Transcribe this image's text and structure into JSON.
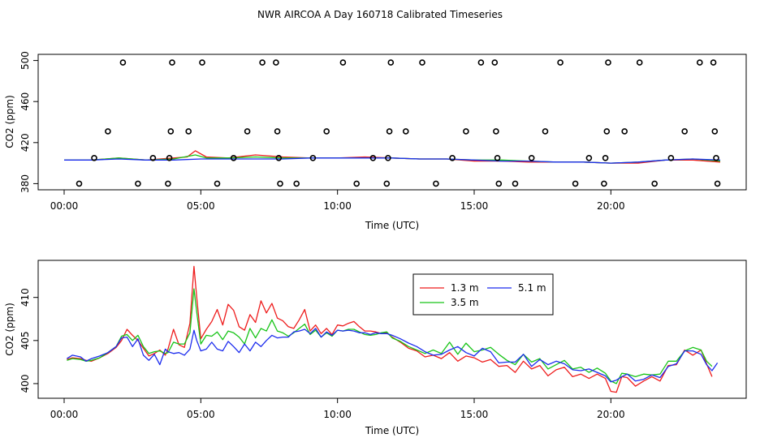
{
  "title": "NWR AIRCOA A  Day 160718  Calibrated Timeseries",
  "colors": {
    "s1": "#ee1c1c",
    "s2": "#18c418",
    "s3": "#1c2cee",
    "points": "#000000"
  },
  "chart_data": [
    {
      "type": "scatter",
      "xlabel": "Time (UTC)",
      "ylabel": "CO2 (ppm)",
      "xlim": [
        -0.95,
        24.95
      ],
      "ylim": [
        374,
        506
      ],
      "x_ticks": [
        0,
        5,
        10,
        15,
        20
      ],
      "x_tick_labels": [
        "00:00",
        "05:00",
        "10:00",
        "15:00",
        "20:00"
      ],
      "y_ticks": [
        380,
        420,
        460,
        500
      ],
      "y_tick_labels": [
        "380",
        "420",
        "460",
        "500"
      ],
      "calibration_points": [
        [
          0.55,
          380
        ],
        [
          1.1,
          405
        ],
        [
          1.6,
          431
        ],
        [
          2.15,
          498
        ],
        [
          2.7,
          380
        ],
        [
          3.25,
          405
        ],
        [
          3.8,
          380
        ],
        [
          3.85,
          405
        ],
        [
          3.9,
          431
        ],
        [
          3.95,
          498
        ],
        [
          4.55,
          431
        ],
        [
          5.05,
          498
        ],
        [
          5.6,
          380
        ],
        [
          6.2,
          405
        ],
        [
          6.7,
          431
        ],
        [
          7.25,
          498
        ],
        [
          7.75,
          498
        ],
        [
          7.8,
          431
        ],
        [
          7.85,
          405
        ],
        [
          7.9,
          380
        ],
        [
          8.5,
          380
        ],
        [
          9.1,
          405
        ],
        [
          9.6,
          431
        ],
        [
          10.2,
          498
        ],
        [
          10.7,
          380
        ],
        [
          11.3,
          405
        ],
        [
          11.8,
          380
        ],
        [
          11.85,
          405
        ],
        [
          11.9,
          431
        ],
        [
          11.95,
          498
        ],
        [
          12.5,
          431
        ],
        [
          13.1,
          498
        ],
        [
          13.6,
          380
        ],
        [
          14.2,
          405
        ],
        [
          14.7,
          431
        ],
        [
          15.25,
          498
        ],
        [
          15.75,
          498
        ],
        [
          15.8,
          431
        ],
        [
          15.85,
          405
        ],
        [
          15.9,
          380
        ],
        [
          16.5,
          380
        ],
        [
          17.1,
          405
        ],
        [
          17.6,
          431
        ],
        [
          18.15,
          498
        ],
        [
          18.7,
          380
        ],
        [
          19.2,
          405
        ],
        [
          19.75,
          380
        ],
        [
          19.8,
          405
        ],
        [
          19.85,
          431
        ],
        [
          19.9,
          498
        ],
        [
          20.5,
          431
        ],
        [
          21.05,
          498
        ],
        [
          21.6,
          380
        ],
        [
          22.2,
          405
        ],
        [
          22.7,
          431
        ],
        [
          23.25,
          498
        ],
        [
          23.75,
          498
        ],
        [
          23.8,
          431
        ],
        [
          23.85,
          405
        ],
        [
          23.9,
          380
        ]
      ],
      "series": [
        {
          "x": [
            0,
            1,
            2,
            3,
            4,
            4.5,
            4.8,
            5.2,
            6,
            7,
            8,
            9,
            10,
            11,
            12,
            13,
            14,
            15,
            16,
            17,
            18,
            19,
            20,
            21,
            22,
            23,
            24
          ],
          "values": [
            403,
            403,
            405,
            403,
            405,
            406,
            412,
            406,
            405,
            408,
            406,
            405,
            405,
            406,
            405,
            404,
            404,
            402,
            402,
            401,
            401,
            401,
            400,
            400,
            403,
            403,
            401
          ]
        },
        {
          "x": [
            0,
            1,
            2,
            3,
            4,
            4.8,
            5.2,
            6,
            7,
            8,
            9,
            10,
            11,
            12,
            13,
            14,
            15,
            16,
            17,
            18,
            19,
            20,
            21,
            22,
            23,
            24
          ],
          "values": [
            403,
            403,
            405,
            403,
            404,
            408,
            405,
            405,
            406,
            405,
            405,
            405,
            405,
            405,
            404,
            404,
            403,
            403,
            402,
            401,
            401,
            400,
            401,
            403,
            404,
            402
          ]
        },
        {
          "x": [
            0,
            1,
            2,
            3,
            4,
            5,
            6,
            7,
            8,
            9,
            10,
            11,
            12,
            13,
            14,
            15,
            16,
            17,
            18,
            19,
            20,
            21,
            22,
            23,
            24
          ],
          "values": [
            403,
            403,
            404,
            403,
            403,
            404,
            404,
            404,
            404,
            405,
            405,
            405,
            405,
            404,
            404,
            403,
            402,
            402,
            401,
            401,
            400,
            401,
            403,
            404,
            403
          ]
        }
      ]
    },
    {
      "type": "line",
      "xlabel": "Time (UTC)",
      "ylabel": "CO2 (ppm)",
      "xlim": [
        -0.95,
        24.95
      ],
      "ylim": [
        398.3,
        414.3
      ],
      "x_ticks": [
        0,
        5,
        10,
        15,
        20
      ],
      "x_tick_labels": [
        "00:00",
        "05:00",
        "10:00",
        "15:00",
        "20:00"
      ],
      "y_ticks": [
        400,
        405,
        410
      ],
      "y_tick_labels": [
        "400",
        "405",
        "410"
      ],
      "legend_position": "top-center",
      "series": [
        {
          "name": "1.3 m",
          "color_key": "s1",
          "x": [
            0.1,
            0.3,
            0.6,
            0.8,
            1.0,
            1.3,
            1.6,
            1.9,
            2.1,
            2.3,
            2.5,
            2.7,
            2.9,
            3.1,
            3.3,
            3.5,
            3.7,
            3.8,
            4.0,
            4.2,
            4.4,
            4.6,
            4.75,
            4.85,
            5.0,
            5.2,
            5.4,
            5.6,
            5.8,
            6.0,
            6.2,
            6.4,
            6.6,
            6.8,
            7.0,
            7.2,
            7.4,
            7.6,
            7.8,
            8.0,
            8.2,
            8.4,
            8.6,
            8.8,
            9.0,
            9.2,
            9.4,
            9.6,
            9.8,
            10.0,
            10.2,
            10.4,
            10.6,
            10.8,
            11.0,
            11.2,
            11.4,
            11.6,
            11.8,
            12.0,
            12.3,
            12.6,
            12.9,
            13.2,
            13.5,
            13.8,
            14.1,
            14.4,
            14.7,
            15.0,
            15.3,
            15.6,
            15.9,
            16.2,
            16.5,
            16.8,
            17.1,
            17.4,
            17.7,
            18.0,
            18.3,
            18.6,
            18.9,
            19.2,
            19.5,
            19.8,
            20.0,
            20.2,
            20.4,
            20.6,
            20.9,
            21.2,
            21.5,
            21.8,
            22.1,
            22.4,
            22.7,
            23.0,
            23.3,
            23.5,
            23.7
          ],
          "values": [
            402.8,
            403.0,
            402.9,
            402.7,
            402.6,
            403.0,
            403.5,
            404.2,
            405.0,
            406.3,
            405.6,
            405.0,
            404.1,
            403.2,
            403.5,
            403.9,
            403.3,
            404.0,
            406.3,
            404.5,
            404.2,
            407.0,
            413.6,
            410.0,
            405.2,
            406.3,
            407.2,
            408.6,
            406.8,
            409.2,
            408.5,
            406.6,
            406.2,
            408.0,
            407.1,
            409.6,
            408.2,
            409.3,
            407.6,
            407.3,
            406.6,
            406.4,
            407.4,
            408.6,
            406.1,
            406.8,
            405.8,
            406.4,
            405.7,
            406.8,
            406.7,
            407.0,
            407.2,
            406.6,
            406.1,
            406.1,
            406.0,
            405.8,
            405.9,
            405.4,
            404.8,
            404.1,
            403.8,
            403.1,
            403.3,
            402.9,
            403.6,
            402.6,
            403.2,
            403.0,
            402.5,
            402.8,
            402.0,
            402.1,
            401.3,
            402.6,
            401.7,
            402.1,
            400.9,
            401.6,
            401.9,
            400.8,
            401.1,
            400.6,
            401.1,
            400.6,
            399.1,
            399.0,
            400.8,
            400.7,
            399.7,
            400.3,
            400.8,
            400.3,
            402.1,
            402.2,
            403.9,
            403.3,
            403.9,
            402.3,
            400.8
          ]
        },
        {
          "name": "3.5 m",
          "color_key": "s2",
          "x": [
            0.1,
            0.3,
            0.6,
            0.8,
            1.0,
            1.3,
            1.6,
            1.9,
            2.1,
            2.3,
            2.5,
            2.7,
            2.9,
            3.1,
            3.3,
            3.5,
            3.7,
            3.8,
            4.0,
            4.2,
            4.4,
            4.6,
            4.75,
            4.85,
            5.0,
            5.2,
            5.4,
            5.6,
            5.8,
            6.0,
            6.2,
            6.4,
            6.6,
            6.8,
            7.0,
            7.2,
            7.4,
            7.6,
            7.8,
            8.0,
            8.2,
            8.4,
            8.6,
            8.8,
            9.0,
            9.2,
            9.4,
            9.6,
            9.8,
            10.0,
            10.2,
            10.4,
            10.6,
            10.8,
            11.0,
            11.2,
            11.4,
            11.6,
            11.8,
            12.0,
            12.3,
            12.6,
            12.9,
            13.2,
            13.5,
            13.8,
            14.1,
            14.4,
            14.7,
            15.0,
            15.3,
            15.6,
            15.9,
            16.2,
            16.5,
            16.8,
            17.1,
            17.4,
            17.7,
            18.0,
            18.3,
            18.6,
            18.9,
            19.2,
            19.5,
            19.8,
            20.0,
            20.2,
            20.4,
            20.6,
            20.9,
            21.2,
            21.5,
            21.8,
            22.1,
            22.4,
            22.7,
            23.0,
            23.3,
            23.5,
            23.7
          ],
          "values": [
            402.7,
            402.9,
            402.8,
            402.6,
            402.7,
            403.0,
            403.6,
            404.3,
            405.5,
            405.7,
            405.0,
            405.6,
            404.3,
            403.5,
            403.7,
            403.8,
            403.5,
            403.6,
            404.8,
            404.6,
            404.6,
            405.9,
            411.0,
            408.3,
            404.6,
            405.6,
            405.5,
            406.0,
            405.1,
            406.1,
            405.9,
            405.4,
            404.6,
            406.4,
            405.3,
            406.4,
            406.1,
            407.4,
            406.1,
            405.9,
            405.5,
            405.9,
            406.4,
            406.9,
            405.7,
            406.2,
            405.4,
            405.9,
            405.5,
            406.2,
            406.1,
            406.3,
            406.3,
            406.0,
            405.7,
            405.6,
            405.7,
            405.9,
            406.0,
            405.3,
            404.9,
            404.3,
            403.9,
            403.5,
            403.9,
            403.5,
            404.8,
            403.4,
            404.7,
            403.7,
            403.9,
            404.2,
            403.4,
            402.7,
            402.2,
            403.4,
            402.5,
            402.9,
            401.7,
            402.2,
            402.7,
            401.7,
            401.9,
            401.3,
            401.8,
            401.2,
            400.3,
            400.0,
            401.2,
            401.1,
            400.8,
            401.1,
            401.0,
            401.1,
            402.6,
            402.6,
            403.8,
            404.2,
            403.9,
            402.6,
            402.0
          ]
        },
        {
          "name": "5.1 m",
          "color_key": "s3",
          "x": [
            0.1,
            0.3,
            0.6,
            0.8,
            1.0,
            1.3,
            1.6,
            1.9,
            2.1,
            2.3,
            2.5,
            2.7,
            2.9,
            3.1,
            3.3,
            3.5,
            3.7,
            3.8,
            4.0,
            4.2,
            4.4,
            4.6,
            4.75,
            4.85,
            5.0,
            5.2,
            5.4,
            5.6,
            5.8,
            6.0,
            6.2,
            6.4,
            6.6,
            6.8,
            7.0,
            7.2,
            7.4,
            7.6,
            7.8,
            8.0,
            8.2,
            8.4,
            8.6,
            8.8,
            9.0,
            9.2,
            9.4,
            9.6,
            9.8,
            10.0,
            10.2,
            10.4,
            10.6,
            10.8,
            11.0,
            11.2,
            11.4,
            11.6,
            11.8,
            12.0,
            12.3,
            12.6,
            12.9,
            13.2,
            13.5,
            13.8,
            14.1,
            14.4,
            14.7,
            15.0,
            15.3,
            15.6,
            15.9,
            16.2,
            16.5,
            16.8,
            17.1,
            17.4,
            17.7,
            18.0,
            18.3,
            18.6,
            18.9,
            19.2,
            19.5,
            19.8,
            20.0,
            20.2,
            20.4,
            20.6,
            20.9,
            21.2,
            21.5,
            21.8,
            22.1,
            22.4,
            22.7,
            23.0,
            23.3,
            23.5,
            23.7,
            23.9
          ],
          "values": [
            402.9,
            403.3,
            403.1,
            402.6,
            402.9,
            403.2,
            403.6,
            404.3,
            405.3,
            405.4,
            404.3,
            405.2,
            403.3,
            402.7,
            403.4,
            402.2,
            404.0,
            403.7,
            403.5,
            403.6,
            403.3,
            404.0,
            406.2,
            405.0,
            403.8,
            404.0,
            404.8,
            404.0,
            403.8,
            404.9,
            404.3,
            403.6,
            404.6,
            403.8,
            404.8,
            404.3,
            405.0,
            405.6,
            405.3,
            405.4,
            405.4,
            406.0,
            406.1,
            406.3,
            405.8,
            406.4,
            405.4,
            406.0,
            405.6,
            406.2,
            406.1,
            406.2,
            406.1,
            405.9,
            405.9,
            405.7,
            405.9,
            405.8,
            405.8,
            405.6,
            405.2,
            404.7,
            404.3,
            403.7,
            403.3,
            403.4,
            403.9,
            404.3,
            403.6,
            403.2,
            404.1,
            403.7,
            402.4,
            402.5,
            402.5,
            403.4,
            402.0,
            402.8,
            402.2,
            402.6,
            402.3,
            401.6,
            401.5,
            401.7,
            401.3,
            400.9,
            400.2,
            400.4,
            400.8,
            401.1,
            400.3,
            400.5,
            401.0,
            400.7,
            402.0,
            402.3,
            403.8,
            403.8,
            403.4,
            402.2,
            401.5,
            402.4
          ]
        }
      ]
    }
  ]
}
